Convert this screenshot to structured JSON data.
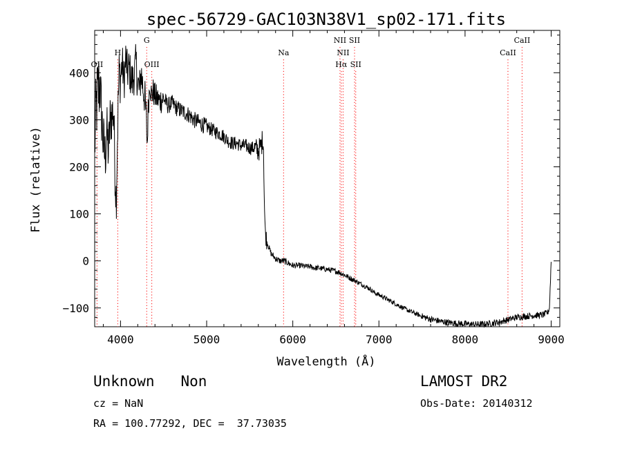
{
  "chart_data": {
    "type": "line",
    "title": "spec-56729-GAC103N38V1_sp02-171.fits",
    "xlabel": "Wavelength (Å)",
    "ylabel": "Flux (relative)",
    "xlim": [
      3700,
      9100
    ],
    "ylim": [
      -140,
      490
    ],
    "x_ticks": [
      4000,
      5000,
      6000,
      7000,
      8000,
      9000
    ],
    "y_ticks": [
      -100,
      0,
      100,
      200,
      300,
      400
    ],
    "grid": false,
    "line_color": "#000000",
    "marker_color": "#ff0000",
    "series": [
      {
        "x": [
          3700,
          3720,
          3740,
          3760,
          3780,
          3800,
          3820,
          3840,
          3860,
          3880,
          3900,
          3920,
          3935,
          3950,
          3965,
          3975,
          3985,
          4000,
          4020,
          4040,
          4060,
          4080,
          4100,
          4120,
          4140,
          4160,
          4180,
          4200,
          4220,
          4240,
          4260,
          4280,
          4300,
          4310,
          4320,
          4340,
          4360,
          4380,
          4400,
          4450,
          4500,
          4550,
          4600,
          4650,
          4700,
          4750,
          4800,
          4850,
          4900,
          4950,
          5000,
          5050,
          5100,
          5150,
          5200,
          5250,
          5300,
          5350,
          5400,
          5450,
          5500,
          5550,
          5600,
          5620,
          5640,
          5650,
          5660,
          5670,
          5680,
          5690,
          5700,
          5720,
          5750,
          5800,
          5850,
          5900,
          5950,
          6000,
          6050,
          6100,
          6150,
          6200,
          6250,
          6300,
          6350,
          6400,
          6450,
          6500,
          6550,
          6600,
          6650,
          6700,
          6750,
          6800,
          6850,
          6900,
          6950,
          7000,
          7100,
          7200,
          7300,
          7400,
          7500,
          7600,
          7700,
          7800,
          7900,
          8000,
          8100,
          8200,
          8300,
          8400,
          8500,
          8600,
          8700,
          8800,
          8900,
          8960,
          8980,
          8990,
          9000
        ],
        "y": [
          250,
          330,
          360,
          380,
          310,
          250,
          220,
          280,
          230,
          300,
          310,
          320,
          200,
          130,
          270,
          350,
          400,
          390,
          420,
          380,
          430,
          400,
          410,
          390,
          380,
          400,
          420,
          380,
          360,
          400,
          370,
          350,
          300,
          240,
          320,
          380,
          350,
          360,
          350,
          340,
          345,
          330,
          335,
          325,
          320,
          315,
          310,
          300,
          295,
          290,
          285,
          280,
          275,
          270,
          265,
          255,
          250,
          250,
          245,
          245,
          240,
          240,
          235,
          240,
          250,
          260,
          240,
          120,
          60,
          50,
          40,
          30,
          15,
          5,
          0,
          0,
          -5,
          -10,
          -10,
          -10,
          -12,
          -12,
          -15,
          -15,
          -17,
          -18,
          -20,
          -22,
          -25,
          -30,
          -35,
          -40,
          -45,
          -50,
          -55,
          -60,
          -68,
          -72,
          -82,
          -92,
          -102,
          -110,
          -118,
          -124,
          -128,
          -131,
          -133,
          -134,
          -135,
          -135,
          -133,
          -130,
          -125,
          -120,
          -118,
          -116,
          -115,
          -110,
          -100,
          -50,
          0
        ],
        "noise": [
          [
            3700,
            3760,
            90
          ],
          [
            3760,
            3840,
            70
          ],
          [
            3840,
            4000,
            60
          ],
          [
            4000,
            4300,
            45
          ],
          [
            4300,
            4500,
            30
          ],
          [
            4500,
            5000,
            18
          ],
          [
            5000,
            5550,
            15
          ],
          [
            5550,
            5650,
            25
          ],
          [
            5650,
            5700,
            20
          ],
          [
            5700,
            6000,
            7
          ],
          [
            6000,
            6700,
            6
          ],
          [
            6700,
            7500,
            5
          ],
          [
            7500,
            9000,
            7
          ]
        ]
      }
    ],
    "lines": [
      {
        "x": 3727,
        "label": "OII",
        "row": 3
      },
      {
        "x": 3968,
        "label": "H",
        "row": 2
      },
      {
        "x": 4304,
        "label": "G",
        "row": 1
      },
      {
        "x": 4363,
        "label": "OIII",
        "row": 3
      },
      {
        "x": 5893,
        "label": "Na",
        "row": 2
      },
      {
        "x": 6548,
        "label": "NII",
        "row": 1
      },
      {
        "x": 6563,
        "label": "Hα",
        "row": 3
      },
      {
        "x": 6584,
        "label": "NII",
        "row": 2
      },
      {
        "x": 6717,
        "label": "SII",
        "row": 1
      },
      {
        "x": 6731,
        "label": "SII",
        "row": 3
      },
      {
        "x": 8498,
        "label": "CaII",
        "row": 2
      },
      {
        "x": 8662,
        "label": "CaII",
        "row": 1
      }
    ]
  },
  "info": {
    "class": "Unknown",
    "subclass": "Non",
    "survey": "LAMOST DR2",
    "cz": "cz = NaN",
    "obs_date": "Obs-Date: 20140312",
    "coords": "RA = 100.77292, DEC =  37.73035"
  }
}
